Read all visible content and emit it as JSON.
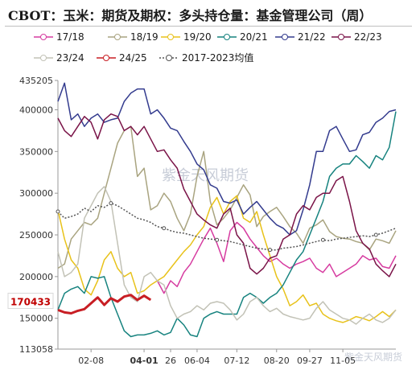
{
  "title": "CBOT：玉米：期货及期权：多头持仓量：基金管理公司（周）",
  "watermark": "紫金天风期货",
  "watermark_logo": "紫金天风期货",
  "chart_data": {
    "type": "line",
    "title": "CBOT：玉米：期货及期权：多头持仓量：基金管理公司（周）",
    "xlabel": "",
    "ylabel": "",
    "x": [
      1,
      2,
      3,
      4,
      5,
      6,
      7,
      8,
      9,
      10,
      11,
      12,
      13,
      14,
      15,
      16,
      17,
      18,
      19,
      20,
      21,
      22,
      23,
      24,
      25,
      26,
      27,
      28,
      29,
      30,
      31,
      32,
      33,
      34,
      35,
      36,
      37,
      38,
      39,
      40,
      41,
      42,
      43,
      44,
      45,
      46,
      47,
      48,
      49,
      50,
      51,
      52
    ],
    "x_ticks": [
      {
        "pos": 6,
        "label": "02-08",
        "highlight": false
      },
      {
        "pos": 14,
        "label": "04-01",
        "highlight": true
      },
      {
        "pos": 18,
        "label": "26",
        "highlight": false
      },
      {
        "pos": 22,
        "label": "06-04",
        "highlight": false
      },
      {
        "pos": 28,
        "label": "07-12",
        "highlight": false
      },
      {
        "pos": 34,
        "label": "08-20",
        "highlight": false
      },
      {
        "pos": 39,
        "label": "09-27",
        "highlight": false
      },
      {
        "pos": 44,
        "label": "11-05",
        "highlight": false
      }
    ],
    "y_ticks": [
      113058,
      150000,
      200000,
      250000,
      300000,
      350000,
      400000,
      435205
    ],
    "y_tick_labels": [
      "113058",
      "150000",
      "200000",
      "250000",
      "300000",
      "350000",
      "400000",
      "435205"
    ],
    "ylim": [
      113058,
      435205
    ],
    "last_value_label": "170433",
    "last_value": 170433,
    "series": [
      {
        "name": "17/18",
        "color": "#d63ba0",
        "marker": "none",
        "values": [
          null,
          null,
          null,
          null,
          null,
          null,
          null,
          null,
          null,
          null,
          null,
          null,
          null,
          null,
          null,
          195000,
          180000,
          195000,
          188000,
          205000,
          215000,
          230000,
          245000,
          258000,
          240000,
          218000,
          255000,
          265000,
          258000,
          245000,
          235000,
          225000,
          218000,
          222000,
          215000,
          210000,
          215000,
          218000,
          222000,
          210000,
          205000,
          215000,
          200000,
          205000,
          210000,
          215000,
          225000,
          220000,
          222000,
          212000,
          210000,
          225000
        ]
      },
      {
        "name": "18/19",
        "color": "#a9a480",
        "marker": "none",
        "values": [
          210000,
          215000,
          245000,
          255000,
          265000,
          262000,
          270000,
          300000,
          330000,
          360000,
          375000,
          380000,
          320000,
          330000,
          280000,
          285000,
          300000,
          290000,
          270000,
          255000,
          275000,
          320000,
          350000,
          290000,
          262000,
          270000,
          280000,
          295000,
          310000,
          298000,
          260000,
          272000,
          278000,
          283000,
          272000,
          260000,
          252000,
          240000,
          258000,
          262000,
          268000,
          254000,
          248000,
          246000,
          245000,
          242000,
          240000,
          232000,
          245000,
          243000,
          240000,
          255000
        ]
      },
      {
        "name": "19/20",
        "color": "#e8c21a",
        "marker": "none",
        "values": [
          280000,
          245000,
          220000,
          210000,
          185000,
          178000,
          195000,
          220000,
          230000,
          210000,
          200000,
          205000,
          180000,
          183000,
          190000,
          195000,
          200000,
          210000,
          220000,
          230000,
          238000,
          250000,
          260000,
          283000,
          295000,
          275000,
          290000,
          297000,
          270000,
          265000,
          278000,
          250000,
          225000,
          200000,
          185000,
          165000,
          170000,
          178000,
          165000,
          168000,
          155000,
          150000,
          147000,
          145000,
          148000,
          152000,
          150000,
          147000,
          152000,
          158000,
          152000,
          160000
        ]
      },
      {
        "name": "20/21",
        "color": "#17837f",
        "marker": "none",
        "values": [
          160000,
          180000,
          185000,
          188000,
          180000,
          200000,
          198000,
          200000,
          175000,
          155000,
          135000,
          128000,
          130000,
          130000,
          132000,
          135000,
          130000,
          133000,
          150000,
          142000,
          130000,
          128000,
          150000,
          155000,
          158000,
          155000,
          155000,
          155000,
          175000,
          180000,
          175000,
          168000,
          175000,
          180000,
          190000,
          205000,
          220000,
          230000,
          250000,
          270000,
          290000,
          320000,
          330000,
          335000,
          335000,
          345000,
          338000,
          330000,
          345000,
          340000,
          355000,
          398000
        ]
      },
      {
        "name": "21/22",
        "color": "#333b8e",
        "marker": "none",
        "values": [
          410000,
          432000,
          388000,
          395000,
          380000,
          390000,
          395000,
          385000,
          388000,
          390000,
          410000,
          420000,
          425000,
          425000,
          395000,
          400000,
          390000,
          378000,
          375000,
          362000,
          350000,
          335000,
          328000,
          310000,
          306000,
          290000,
          288000,
          292000,
          275000,
          283000,
          290000,
          280000,
          270000,
          262000,
          258000,
          250000,
          255000,
          280000,
          310000,
          350000,
          350000,
          375000,
          380000,
          365000,
          350000,
          352000,
          370000,
          373000,
          385000,
          390000,
          398000,
          400000
        ]
      },
      {
        "name": "22/23",
        "color": "#7a1448",
        "marker": "none",
        "values": [
          390000,
          375000,
          368000,
          380000,
          392000,
          385000,
          365000,
          388000,
          395000,
          392000,
          375000,
          380000,
          370000,
          380000,
          365000,
          350000,
          352000,
          340000,
          330000,
          305000,
          290000,
          275000,
          268000,
          262000,
          258000,
          275000,
          282000,
          250000,
          240000,
          210000,
          203000,
          210000,
          222000,
          225000,
          245000,
          250000,
          275000,
          285000,
          280000,
          295000,
          300000,
          300000,
          315000,
          320000,
          290000,
          255000,
          240000,
          233000,
          215000,
          207000,
          200000,
          215000
        ]
      },
      {
        "name": "23/24",
        "color": "#c2c2b6",
        "marker": "none",
        "values": [
          230000,
          200000,
          205000,
          215000,
          270000,
          285000,
          300000,
          308000,
          290000,
          240000,
          190000,
          175000,
          170000,
          200000,
          205000,
          195000,
          190000,
          165000,
          150000,
          155000,
          158000,
          165000,
          160000,
          168000,
          170000,
          168000,
          160000,
          148000,
          155000,
          170000,
          175000,
          165000,
          158000,
          162000,
          155000,
          152000,
          150000,
          148000,
          150000,
          162000,
          170000,
          160000,
          155000,
          150000,
          148000,
          143000,
          150000,
          155000,
          148000,
          145000,
          150000,
          160000
        ]
      },
      {
        "name": "24/25",
        "color": "#c81e24",
        "marker": "none",
        "values": [
          160000,
          157000,
          156000,
          159000,
          161000,
          168000,
          175000,
          166000,
          174000,
          170000,
          176000,
          178000,
          172000,
          177000,
          172000,
          null,
          null,
          null,
          null,
          null,
          null,
          null,
          null,
          null,
          null,
          null,
          null,
          null,
          null,
          null,
          null,
          null,
          null,
          null,
          null,
          null,
          null,
          null,
          null,
          null,
          null,
          null,
          null,
          null,
          null,
          null,
          null,
          null,
          null,
          null,
          null,
          null
        ]
      },
      {
        "name": "2017-2023均值",
        "color": "#555555",
        "marker": "circle",
        "values": [
          278000,
          270000,
          272000,
          275000,
          282000,
          278000,
          285000,
          283000,
          288000,
          285000,
          280000,
          275000,
          270000,
          268000,
          265000,
          260000,
          258000,
          255000,
          253000,
          252000,
          250000,
          248000,
          246000,
          245000,
          244000,
          243000,
          242000,
          240000,
          238000,
          236000,
          234000,
          233000,
          232000,
          232000,
          234000,
          235000,
          236000,
          238000,
          240000,
          242000,
          244000,
          243000,
          245000,
          246000,
          247000,
          248000,
          249000,
          248000,
          250000,
          252000,
          255000,
          258000
        ]
      }
    ]
  }
}
